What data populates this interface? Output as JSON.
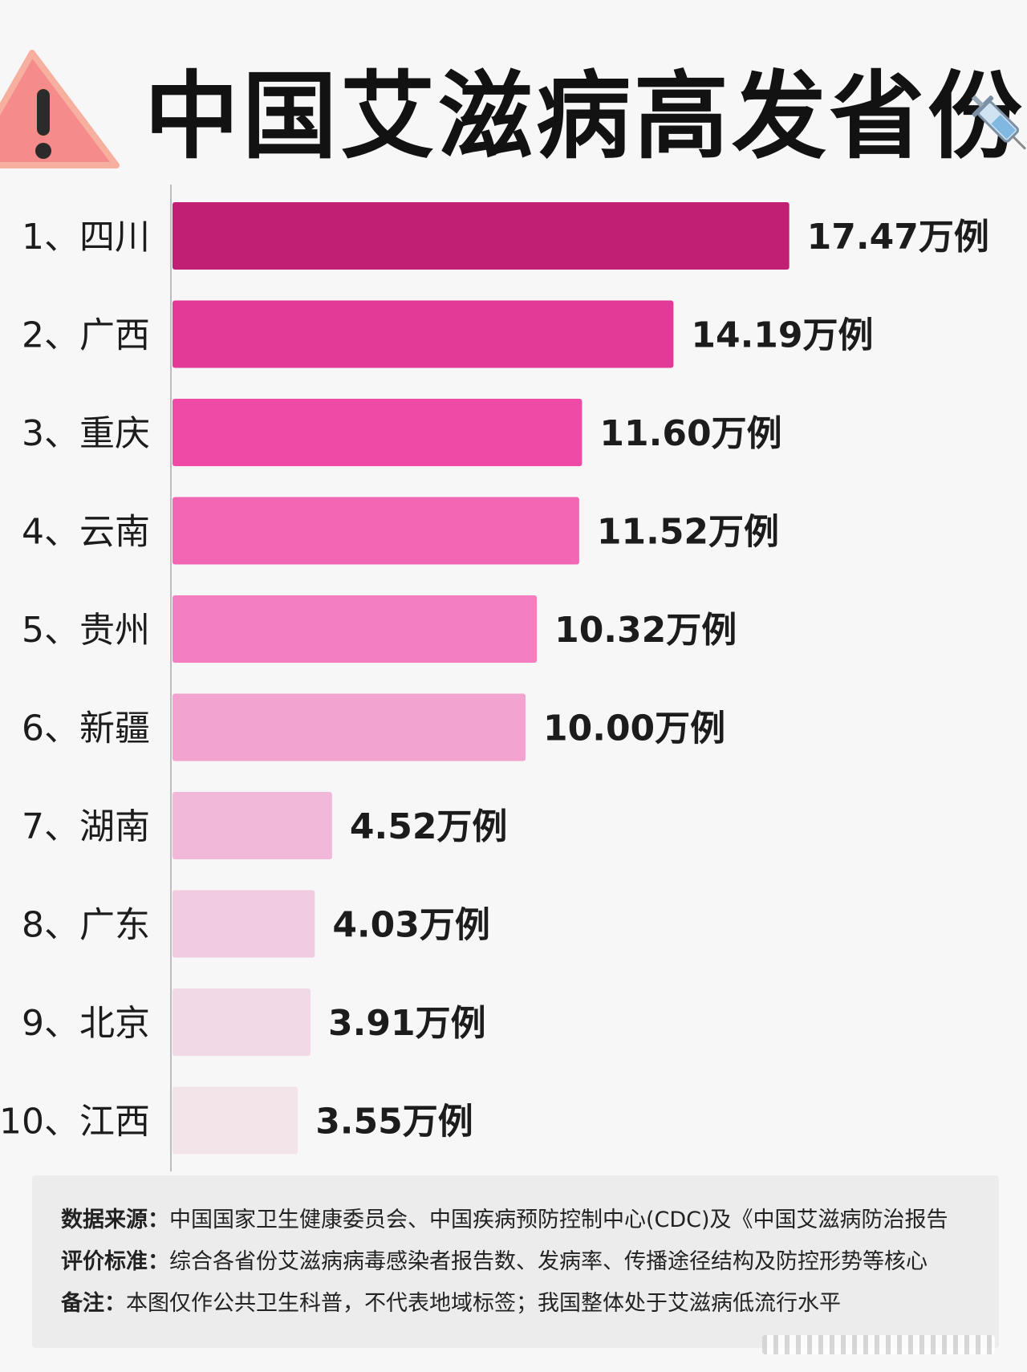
{
  "title": "中国艾滋病高发省份",
  "icons": {
    "left": "warning-icon",
    "right": "syringe-icon"
  },
  "chart_data": {
    "type": "bar",
    "orientation": "horizontal",
    "unit": "万例",
    "categories": [
      "1、四川",
      "2、广西",
      "3、重庆",
      "4、云南",
      "5、贵州",
      "6、新疆",
      "7、湖南",
      "8、广东",
      "9、北京",
      "10、江西"
    ],
    "values": [
      17.47,
      14.19,
      11.6,
      11.52,
      10.32,
      10.0,
      4.52,
      4.03,
      3.91,
      3.55
    ],
    "value_labels": [
      "17.47万例",
      "14.19万例",
      "11.60万例",
      "11.52万例",
      "10.32万例",
      "10.00万例",
      "4.52万例",
      "4.03万例",
      "3.91万例",
      "3.55万例"
    ],
    "colors": [
      "#c01f73",
      "#e23a96",
      "#ef4aa5",
      "#f266b4",
      "#f37ebf",
      "#f2a3cf",
      "#f1b8d9",
      "#f1cbe0",
      "#f1dae6",
      "#f3e4ea"
    ],
    "grid": false,
    "legend": "none"
  },
  "notes": [
    {
      "key": "数据来源：",
      "text": "中国国家卫生健康委员会、中国疾病预防控制中心(CDC)及《中国艾滋病防治报告"
    },
    {
      "key": "评价标准：",
      "text": "综合各省份艾滋病病毒感染者报告数、发病率、传播途径结构及防控形势等核心"
    },
    {
      "key": "备注：",
      "text": "本图仅作公共卫生科普，不代表地域标签；我国整体处于艾滋病低流行水平"
    }
  ]
}
